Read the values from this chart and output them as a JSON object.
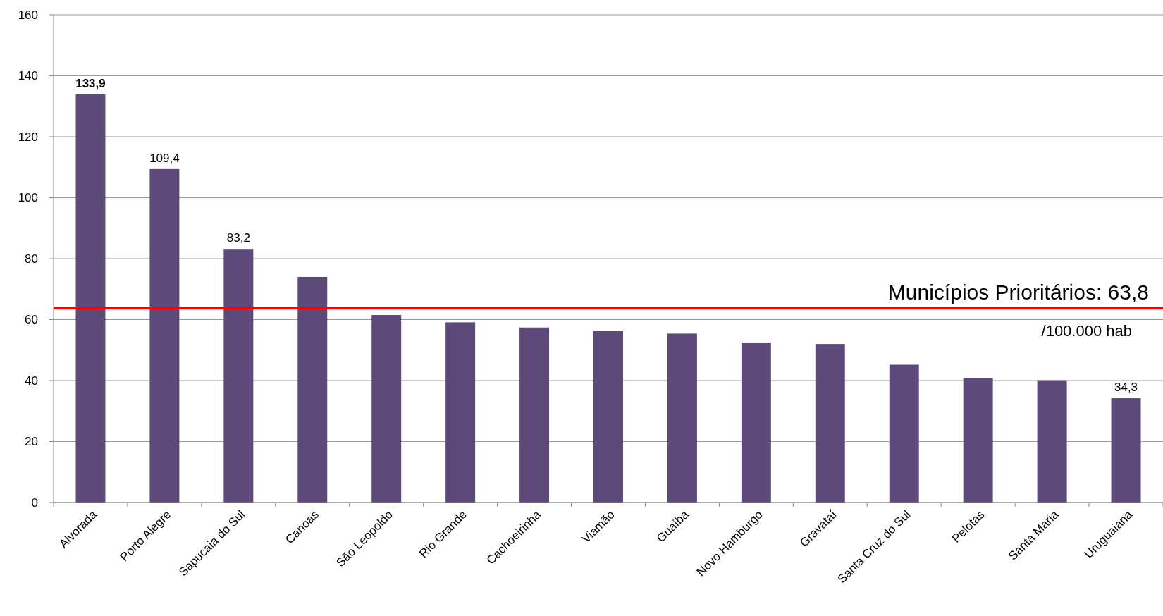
{
  "chart_data": {
    "type": "bar",
    "categories": [
      "Alvorada",
      "Porto Alegre",
      "Sapucaia do Sul",
      "Canoas",
      "São Leopoldo",
      "Rio Grande",
      "Cachoeirinha",
      "Viamão",
      "Guaíba",
      "Novo Hamburgo",
      "Gravataí",
      "Santa Cruz do Sul",
      "Pelotas",
      "Santa Maria",
      "Uruguaiana"
    ],
    "values": [
      133.9,
      109.4,
      83.2,
      74.0,
      61.5,
      59.1,
      57.4,
      56.2,
      55.4,
      52.5,
      52.0,
      45.2,
      40.9,
      40.1,
      34.3
    ],
    "value_labels": [
      "133,9",
      "109,4",
      "83,2",
      null,
      null,
      null,
      null,
      null,
      null,
      null,
      null,
      null,
      null,
      null,
      "34,3"
    ],
    "color": "#5e4a7a",
    "ylim": [
      0,
      160
    ],
    "yticks": [
      0,
      20,
      40,
      60,
      80,
      100,
      120,
      140,
      160
    ],
    "grid": "y",
    "ref_lines": [
      {
        "axis": "y",
        "value": 63.8,
        "label": "Municípios Prioritários: 63,8",
        "color": "#ff0000"
      }
    ],
    "annotations": [
      "/100.000 hab"
    ]
  }
}
